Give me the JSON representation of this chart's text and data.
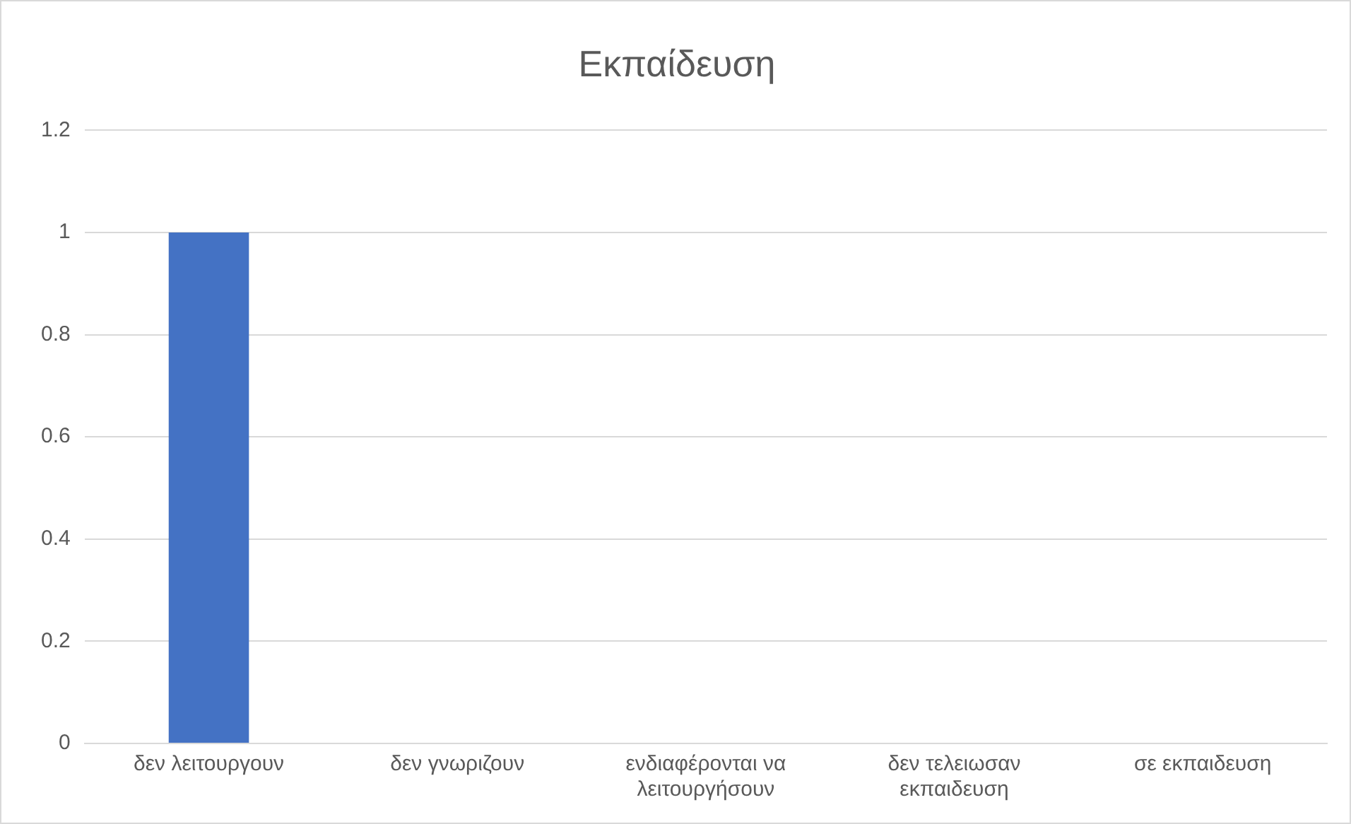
{
  "chart_data": {
    "type": "bar",
    "title": "Εκπαίδευση",
    "categories": [
      "δεν λειτουργουν",
      "δεν γνωριζουν",
      "ενδιαφέρονται να λειτουργήσουν",
      "δεν τελειωσαν εκπαιδευση",
      "σε εκπαιδευση"
    ],
    "values": [
      1,
      0,
      0,
      0,
      0
    ],
    "color": "#4472c4",
    "ylim": [
      0,
      1.2
    ],
    "yticks": [
      0,
      0.2,
      0.4,
      0.6,
      0.8,
      1,
      1.2
    ],
    "grid": "y",
    "legend": false
  }
}
